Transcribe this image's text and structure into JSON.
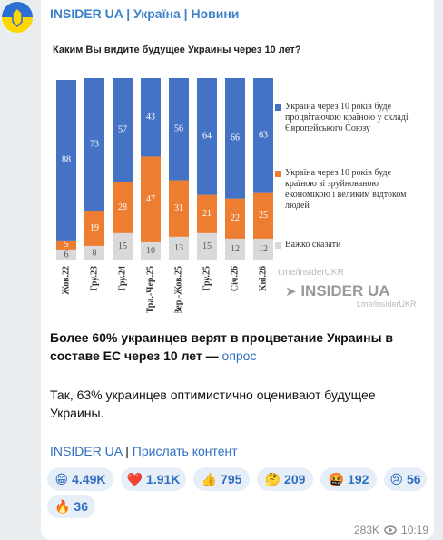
{
  "header": {
    "channel": "INSIDER UA | Україна | Новини"
  },
  "chart_data": {
    "type": "stacked-bar",
    "title": "Каким Вы видите будущее Украины через 10 лет?",
    "categories": [
      "Жов.22",
      "Гру.23",
      "Гру.24",
      "Тра.-Чер.25",
      "Вер.-Жов.25",
      "Гру.25",
      "Січ.26",
      "Кві.26"
    ],
    "series": [
      {
        "name": "Важко сказати",
        "color": "#d9d9d9",
        "values": [
          6,
          8,
          15,
          10,
          13,
          15,
          12,
          12
        ]
      },
      {
        "name": "Україна через 10 років буде країною зі зруйнованою економікою і великим відтоком людей",
        "color": "#ed7d31",
        "values": [
          5,
          19,
          28,
          47,
          31,
          21,
          22,
          25
        ]
      },
      {
        "name": "Україна через 10 років буде процвітаючою країною у складі Європейського Союзу",
        "color": "#4472c4",
        "values": [
          88,
          73,
          57,
          43,
          56,
          64,
          66,
          63
        ]
      }
    ]
  },
  "watermark": {
    "top": "t.me/insiderUKR",
    "logo": "INSIDER UA",
    "link": "t.me/insiderUKR"
  },
  "message": {
    "headline": "Более 60% украинцев верят в процветание Украины в составе ЕС через 10 лет — ",
    "headline_link": "опрос",
    "body": "Так, 63% украинцев оптимистично оценивают будущее Украины.",
    "links": [
      "INSIDER UA",
      "Прислать контент"
    ],
    "separator": "|"
  },
  "reactions": [
    {
      "emoji": "😁",
      "count": "4.49K"
    },
    {
      "emoji": "❤️",
      "count": "1.91K"
    },
    {
      "emoji": "👍",
      "count": "795"
    },
    {
      "emoji": "🤔",
      "count": "209"
    },
    {
      "emoji": "🤬",
      "count": "192"
    },
    {
      "emoji": "😢",
      "count": "56"
    },
    {
      "emoji": "🔥",
      "count": "36"
    }
  ],
  "footer": {
    "views": "283K",
    "time": "10:19"
  }
}
